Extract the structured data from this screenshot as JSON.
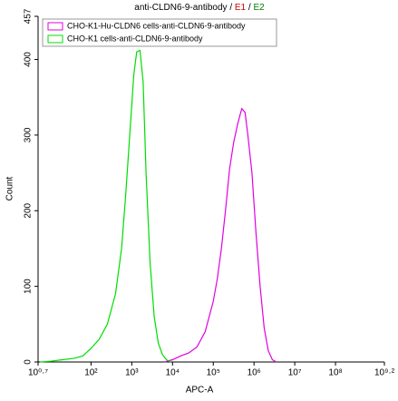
{
  "chart_data": {
    "type": "line",
    "title_parts": [
      {
        "text": "anti-CLDN6-9-antibody /",
        "color": "#000000"
      },
      {
        "text": "E1",
        "color": "#d00000"
      },
      {
        "text": "/",
        "color": "#000000"
      },
      {
        "text": "E2",
        "color": "#008000"
      }
    ],
    "x_label": "APC-A",
    "y_label": "Count",
    "x_log": true,
    "xlim": [
      5.012,
      1584893192
    ],
    "xticks": [
      {
        "value": 5.012,
        "label": "10⁰·⁷"
      },
      {
        "value": 100,
        "label": "10²"
      },
      {
        "value": 1000,
        "label": "10³"
      },
      {
        "value": 10000,
        "label": "10⁴"
      },
      {
        "value": 100000,
        "label": "10⁵"
      },
      {
        "value": 1000000,
        "label": "10⁶"
      },
      {
        "value": 10000000,
        "label": "10⁷"
      },
      {
        "value": 100000000,
        "label": "10⁸"
      },
      {
        "value": 1584893192,
        "label": "10⁹·²"
      }
    ],
    "ylim": [
      0,
      457
    ],
    "yticks": [
      0,
      100,
      200,
      300,
      400,
      457
    ],
    "series": [
      {
        "name": "CHO-K1-Hu-CLDN6 cells-anti-CLDN6-9-antibody",
        "color": "#e000e0",
        "x": [
          6310,
          10000,
          15850,
          25120,
          39810,
          63100,
          100000,
          125900,
          158500,
          199500,
          251200,
          316200,
          398100,
          501200,
          602600,
          707900,
          891300,
          1122000,
          1413000,
          1778000,
          2239000,
          2818000,
          3548000
        ],
        "values": [
          0,
          3,
          8,
          12,
          20,
          40,
          80,
          110,
          150,
          200,
          255,
          290,
          315,
          335,
          330,
          300,
          250,
          170,
          100,
          45,
          15,
          3,
          0
        ]
      },
      {
        "name": "CHO-K1 cells-anti-CLDN6-9-antibody",
        "color": "#00dd00",
        "x": [
          5.62,
          10,
          19.95,
          39.8,
          63.1,
          100,
          158.5,
          251.2,
          398.1,
          562.3,
          707.9,
          891.3,
          1122,
          1318,
          1585,
          1905,
          2239,
          2818,
          3548,
          4467,
          5623,
          7079,
          8913
        ],
        "values": [
          0,
          1,
          3,
          5,
          8,
          18,
          30,
          50,
          90,
          150,
          220,
          300,
          380,
          410,
          412,
          370,
          250,
          130,
          60,
          25,
          10,
          3,
          0
        ]
      }
    ]
  }
}
